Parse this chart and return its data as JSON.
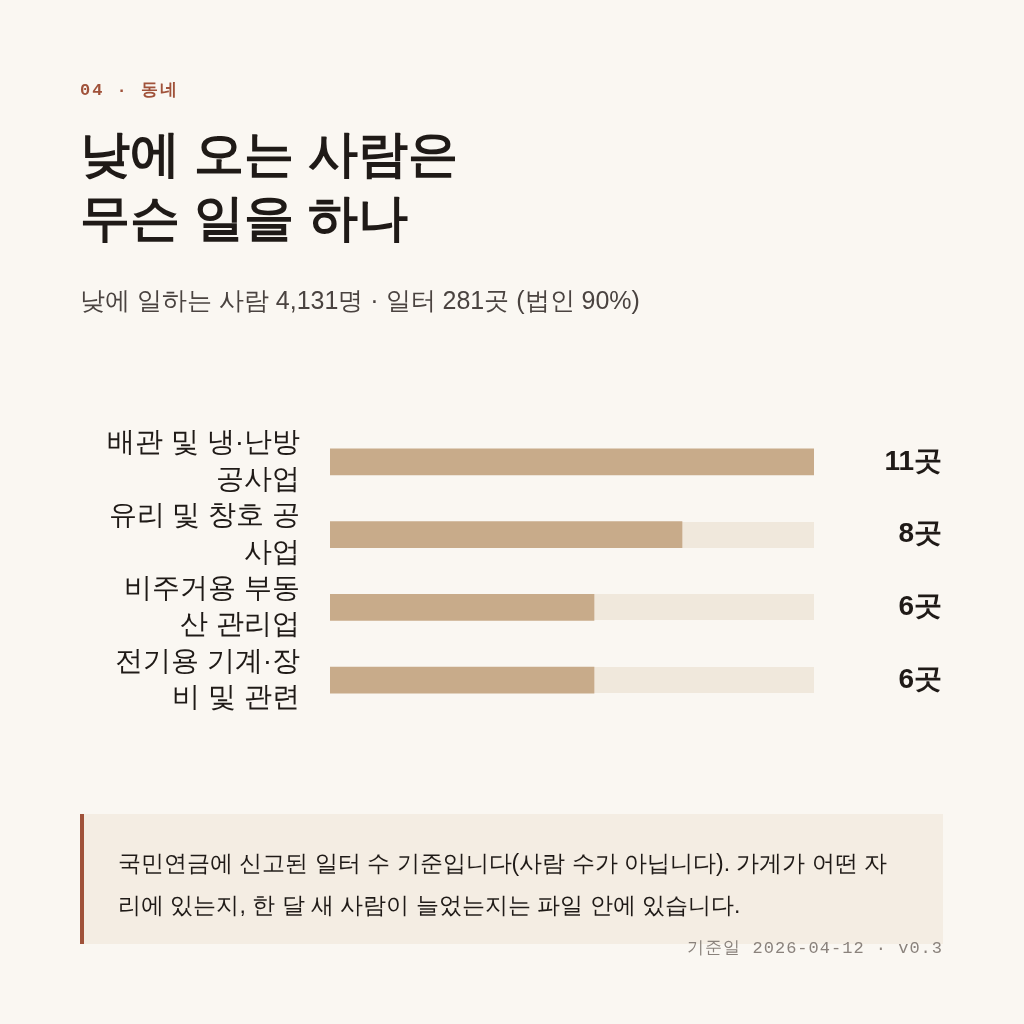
{
  "chart_data": {
    "type": "bar",
    "orientation": "horizontal",
    "title": "낮에 오는 사람은 무슨 일을 하나",
    "subtitle": "낮에 일하는 사람 4,131명 · 일터 281곳 (법인 90%)",
    "categories": [
      "배관 및 냉·난방 공사업",
      "유리 및 창호 공사업",
      "비주거용 부동산 관리업",
      "전기용 기계·장비 및 관련"
    ],
    "values": [
      11,
      8,
      6,
      6
    ],
    "value_labels": [
      "11곳",
      "8곳",
      "6곳",
      "6곳"
    ],
    "color": "#c8ab8a",
    "tick_labels": "y",
    "annotations": [
      "04 · 동네",
      "국민연금에 신고된 일터 수 기준입니다(사람 수가 아닙니다). 가게가 어떤 자리에 있는지, 한 달 새 사람이 늘었는지는 파일 안에 있습니다.",
      "기준일 2026-04-12 · v0.3"
    ]
  }
}
